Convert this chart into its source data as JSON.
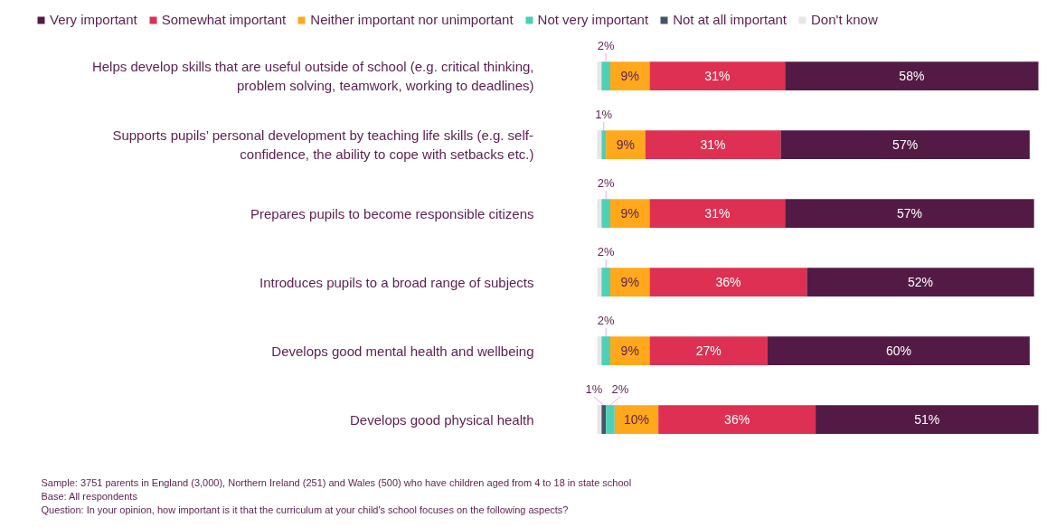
{
  "chart_data": {
    "type": "bar",
    "orientation": "horizontal",
    "stacked": true,
    "legend": "top",
    "grid": false,
    "tick_labels": "y",
    "categories": [
      "Helps develop skills that are useful outside of school (e.g. critical thinking, problem solving, teamwork, working to deadlines)",
      "Supports pupils’ personal development by teaching life skills (e.g. self-confidence, the ability to cope with setbacks etc.)",
      "Prepares pupils to become responsible citizens",
      "Introduces pupils to a broad range of subjects",
      "Develops good mental health and wellbeing",
      "Develops good physical health"
    ],
    "series": [
      {
        "name": "Don't know",
        "color": "#e6e6e6",
        "values": [
          1,
          1,
          1,
          1,
          1,
          1
        ],
        "value_labels": [
          null,
          null,
          null,
          null,
          null,
          null
        ]
      },
      {
        "name": "Not at all important",
        "color": "#44546a",
        "values": [
          0,
          0,
          0,
          0,
          0,
          1
        ],
        "value_labels": [
          null,
          null,
          null,
          null,
          null,
          "1%"
        ]
      },
      {
        "name": "Not very important",
        "color": "#4dd0b5",
        "values": [
          2,
          1,
          2,
          2,
          2,
          2
        ],
        "value_labels": [
          "2%",
          "1%",
          "2%",
          "2%",
          "2%",
          "2%"
        ]
      },
      {
        "name": "Neither important nor unimportant",
        "color": "#ffa81c",
        "values": [
          9,
          9,
          9,
          9,
          9,
          10
        ],
        "value_labels": [
          "9%",
          "9%",
          "9%",
          "9%",
          "9%",
          "10%"
        ]
      },
      {
        "name": "Somewhat important",
        "color": "#de3052",
        "values": [
          31,
          31,
          31,
          36,
          27,
          36
        ],
        "value_labels": [
          "31%",
          "31%",
          "31%",
          "36%",
          "27%",
          "36%"
        ]
      },
      {
        "name": "Very important",
        "color": "#521a44",
        "values": [
          58,
          57,
          57,
          52,
          60,
          51
        ],
        "value_labels": [
          "58%",
          "57%",
          "57%",
          "52%",
          "60%",
          "51%"
        ]
      }
    ],
    "annotations": [
      "Sample: 3751 parents in England (3,000),  Northern Ireland (251) and Wales (500) who have children aged from 4 to 18 in state school",
      "Base: All respondents",
      "Question:  In your opinion, how important is it that the curriculum at your child's school focuses on the following aspects?"
    ]
  }
}
